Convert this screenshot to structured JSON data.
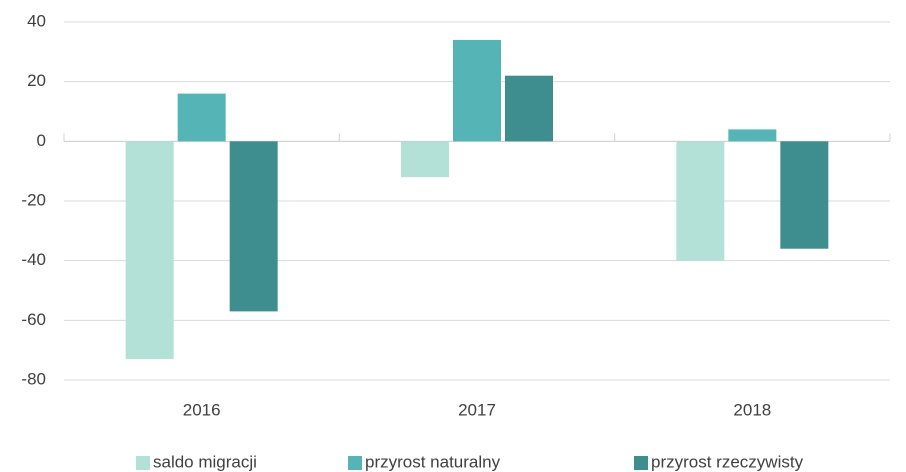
{
  "chart_data": {
    "type": "bar",
    "categories": [
      "2016",
      "2017",
      "2018"
    ],
    "series": [
      {
        "name": "saldo migracji",
        "color": "#b3e0d7",
        "values": [
          -73,
          -12,
          -40
        ]
      },
      {
        "name": "przyrost naturalny",
        "color": "#55b4b5",
        "values": [
          16,
          34,
          4
        ]
      },
      {
        "name": "przyrost rzeczywisty",
        "color": "#3e8e8f",
        "values": [
          -57,
          22,
          -36
        ]
      }
    ],
    "ylim": [
      -80,
      40
    ],
    "yticks": [
      -80,
      -60,
      -40,
      -20,
      0,
      20,
      40
    ],
    "grid": true,
    "legend": "bottom"
  }
}
